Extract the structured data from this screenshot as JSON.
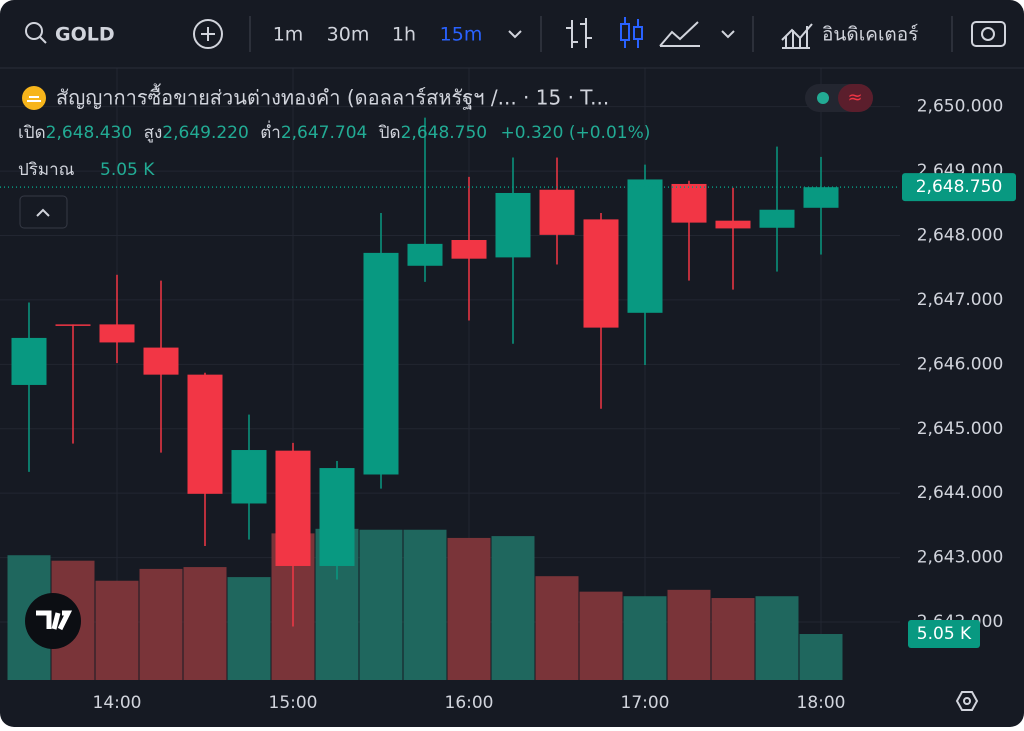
{
  "toolbar": {
    "symbol": "GOLD",
    "intervals": [
      "1m",
      "30m",
      "1h",
      "15m"
    ],
    "indicators": "อินดิเคเตอร์"
  },
  "legend": {
    "title": "สัญญาการซื้อขายส่วนต่างทองคำ (ดอลลาร์สหรัฐฯ /...  · 15 · T...",
    "open_label": "เปิด",
    "open": "2,648.430",
    "high_label": "สูง",
    "high": "2,649.220",
    "low_label": "ต่ำ",
    "low": "2,647.704",
    "close_label": "ปิด",
    "close": "2,648.750",
    "change": "+0.320 (+0.01%)",
    "volume_label": "ปริมาณ",
    "volume": "5.05 K"
  },
  "chart_data": {
    "type": "candlestick",
    "categories": [
      null,
      null,
      "14:00",
      null,
      null,
      null,
      "15:00",
      null,
      null,
      null,
      "16:00",
      null,
      null,
      null,
      "17:00",
      null,
      null,
      null,
      "18:00"
    ],
    "open": [
      2645.68,
      2646.62,
      2646.62,
      2646.26,
      2645.84,
      2643.84,
      2644.66,
      2642.87,
      2644.29,
      2647.53,
      2647.93,
      2647.66,
      2648.71,
      2648.25,
      2646.8,
      2648.8,
      2648.23,
      2648.12,
      2648.43
    ],
    "high": [
      2646.96,
      2646.62,
      2647.39,
      2647.3,
      2645.87,
      2645.22,
      2644.78,
      2644.5,
      2648.35,
      2649.83,
      2648.91,
      2649.21,
      2649.21,
      2648.35,
      2649.1,
      2648.85,
      2648.74,
      2649.38,
      2649.22
    ],
    "low": [
      2644.33,
      2644.77,
      2646.02,
      2644.63,
      2643.18,
      2643.28,
      2641.93,
      2642.66,
      2644.07,
      2647.28,
      2646.68,
      2646.32,
      2647.55,
      2645.31,
      2645.99,
      2647.3,
      2647.16,
      2647.44,
      2647.704
    ],
    "close": [
      2646.41,
      2646.6,
      2646.34,
      2645.84,
      2643.99,
      2644.67,
      2642.87,
      2644.39,
      2647.73,
      2647.87,
      2647.64,
      2648.66,
      2648.01,
      2646.57,
      2648.87,
      2648.2,
      2648.11,
      2648.4,
      2648.75
    ],
    "volume": [
      13700,
      13100,
      10900,
      12200,
      12400,
      11300,
      16100,
      16600,
      16500,
      16500,
      15600,
      15800,
      11400,
      9700,
      9200,
      9900,
      9000,
      9200,
      5050
    ],
    "ylim": [
      2641.1,
      2650.6
    ],
    "yticks": [
      {
        "value": 2642,
        "label": "2,642.000"
      },
      {
        "value": 2643,
        "label": "2,643.000"
      },
      {
        "value": 2644,
        "label": "2,644.000"
      },
      {
        "value": 2645,
        "label": "2,645.000"
      },
      {
        "value": 2646,
        "label": "2,646.000"
      },
      {
        "value": 2647,
        "label": "2,647.000"
      },
      {
        "value": 2648,
        "label": "2,648.000"
      },
      {
        "value": 2649,
        "label": "2,649.000"
      },
      {
        "value": 2650,
        "label": "2,650.000"
      }
    ],
    "y2lim": [
      0,
      67200
    ],
    "last_price": {
      "value": 2648.75,
      "label": "2,648.750"
    },
    "up_color": "#089981",
    "down_color": "#f23645",
    "up_volume_color": "#1f675e",
    "down_volume_color": "#7a3439",
    "grid": true
  }
}
